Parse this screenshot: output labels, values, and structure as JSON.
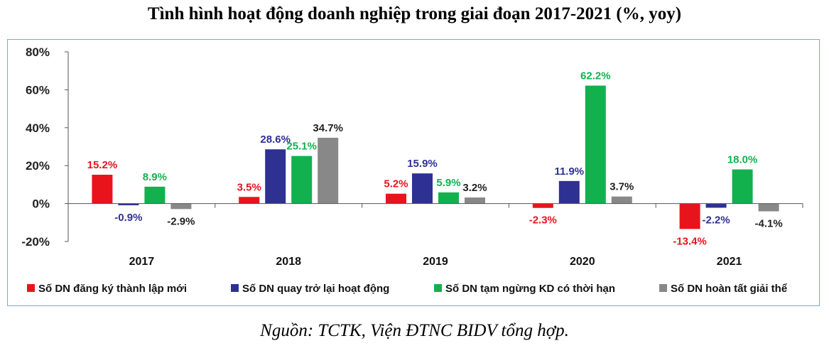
{
  "title": "Tình hình hoạt động doanh nghiệp trong giai đoạn 2017-2021 (%, yoy)",
  "source": "Nguồn: TCTK, Viện ĐTNC BIDV tổng hợp.",
  "chart_data": {
    "type": "bar",
    "categories": [
      "2017",
      "2018",
      "2019",
      "2020",
      "2021"
    ],
    "ylim": [
      -20,
      80
    ],
    "yticks": [
      80,
      60,
      40,
      20,
      0,
      -20
    ],
    "ytick_labels": [
      "80%",
      "60%",
      "40%",
      "20%",
      "0%",
      "-20%"
    ],
    "grid": false,
    "legend_position": "bottom",
    "series": [
      {
        "name": "Số DN đăng ký thành lập mới",
        "color": "#e8141b",
        "values": [
          15.2,
          3.5,
          5.2,
          -2.3,
          -13.4
        ],
        "labels": [
          "15.2%",
          "3.5%",
          "5.2%",
          "-2.3%",
          "-13.4%"
        ]
      },
      {
        "name": "Số DN quay trở lại hoạt động",
        "color": "#2e3192",
        "values": [
          -0.9,
          28.6,
          15.9,
          11.9,
          -2.2
        ],
        "labels": [
          "-0.9%",
          "28.6%",
          "15.9%",
          "11.9%",
          "-2.2%"
        ]
      },
      {
        "name": "Số DN tạm ngừng KD có thời hạn",
        "color": "#12b14e",
        "values": [
          8.9,
          25.1,
          5.9,
          62.2,
          18.0
        ],
        "labels": [
          "8.9%",
          "25.1%",
          "5.9%",
          "62.2%",
          "18.0%"
        ]
      },
      {
        "name": "Số DN hoàn tất giải thể",
        "color": "#888888",
        "values": [
          -2.9,
          34.7,
          3.2,
          3.7,
          -4.1
        ],
        "labels": [
          "-2.9%",
          "34.7%",
          "3.2%",
          "3.7%",
          "-4.1%"
        ]
      }
    ]
  }
}
